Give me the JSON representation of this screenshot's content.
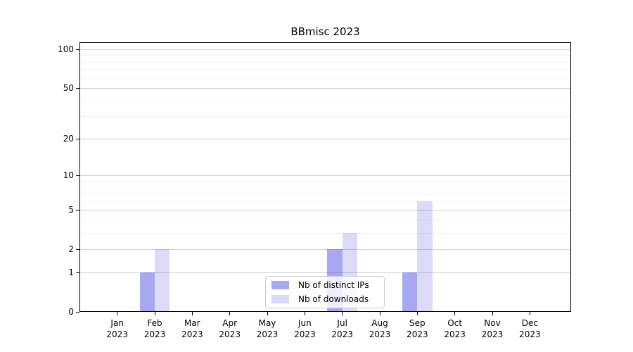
{
  "chart_data": {
    "type": "bar",
    "title": "BBmisc 2023",
    "categories": [
      {
        "month": "Jan",
        "year": "2023"
      },
      {
        "month": "Feb",
        "year": "2023"
      },
      {
        "month": "Mar",
        "year": "2023"
      },
      {
        "month": "Apr",
        "year": "2023"
      },
      {
        "month": "May",
        "year": "2023"
      },
      {
        "month": "Jun",
        "year": "2023"
      },
      {
        "month": "Jul",
        "year": "2023"
      },
      {
        "month": "Aug",
        "year": "2023"
      },
      {
        "month": "Sep",
        "year": "2023"
      },
      {
        "month": "Oct",
        "year": "2023"
      },
      {
        "month": "Nov",
        "year": "2023"
      },
      {
        "month": "Dec",
        "year": "2023"
      }
    ],
    "series": [
      {
        "name": "Nb of distinct IPs",
        "values": [
          0,
          1,
          0,
          0,
          0,
          0,
          2,
          0,
          1,
          0,
          0,
          0
        ],
        "color": "rgba(0,0,215,0.34)",
        "solid_hex": "#aaaaf2"
      },
      {
        "name": "Nb of downloads",
        "values": [
          0,
          2,
          0,
          0,
          0,
          0,
          3,
          0,
          6,
          0,
          0,
          0
        ],
        "color": "rgba(0,0,200,0.14)",
        "solid_hex": "#dcdcf8"
      }
    ],
    "xlabel": "",
    "ylabel": "",
    "y_scale": "log1p",
    "ylim": [
      0,
      100
    ],
    "y_major_ticks": [
      0,
      1,
      2,
      5,
      10,
      20,
      50,
      100
    ],
    "y_minor_gridlines": [
      3,
      4,
      6,
      7,
      8,
      9,
      30,
      40,
      60,
      70,
      80,
      90
    ],
    "grid": true,
    "legend_position": "lower-center-inside"
  },
  "colors": {
    "background": "#ffffff",
    "spine": "#000000",
    "gridline_major": "#d0d0d0",
    "gridline_minor": "#efefef",
    "legend_border": "#cccccc"
  }
}
